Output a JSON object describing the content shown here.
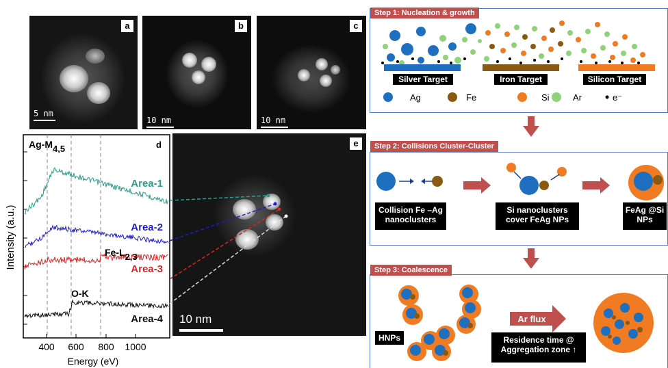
{
  "panels": {
    "a": "a",
    "b": "b",
    "c": "c",
    "d": "d",
    "e": "e"
  },
  "scalebars": {
    "a": "5 nm",
    "b": "10 nm",
    "c": "10 nm",
    "e": "10 nm"
  },
  "spectrum": {
    "ylabel": "Intensity (a.u.)",
    "xlabel": "Energy (eV)",
    "xticks": [
      "400",
      "600",
      "800",
      "1000"
    ],
    "edges": {
      "ag": "Ag-M",
      "ag_sub": "4,5",
      "fe": "Fe-L",
      "fe_sub": "2,3",
      "ok": "O-K"
    },
    "areas": [
      {
        "name": "Area-1",
        "color": "#2e9a8e"
      },
      {
        "name": "Area-2",
        "color": "#1c1ccc"
      },
      {
        "name": "Area-3",
        "color": "#dd2424"
      },
      {
        "name": "Area-4",
        "color": "#111111"
      }
    ]
  },
  "step1": {
    "title": "Step 1: Nucleation & growth",
    "targets": [
      "Silver Target",
      "Iron Target",
      "Silicon Target"
    ],
    "legend": [
      {
        "label": "Ag",
        "color": "#1f6fc0"
      },
      {
        "label": "Fe",
        "color": "#8b5a12"
      },
      {
        "label": "Si",
        "color": "#f07b22"
      },
      {
        "label": "Ar",
        "color": "#8fd27a"
      },
      {
        "label": "e⁻",
        "color": "#000000"
      }
    ]
  },
  "step2": {
    "title": "Step 2: Collisions  Cluster-Cluster",
    "labels": [
      "Collision Fe –Ag nanoclusters",
      "Si nanoclusters cover  FeAg NPs",
      "FeAg @Si NPs"
    ]
  },
  "step3": {
    "title": "Step 3: Coalescence",
    "hnp": "HNPs",
    "flux": "Ar flux",
    "residence": "Residence time @ Aggregation zone ↑"
  }
}
